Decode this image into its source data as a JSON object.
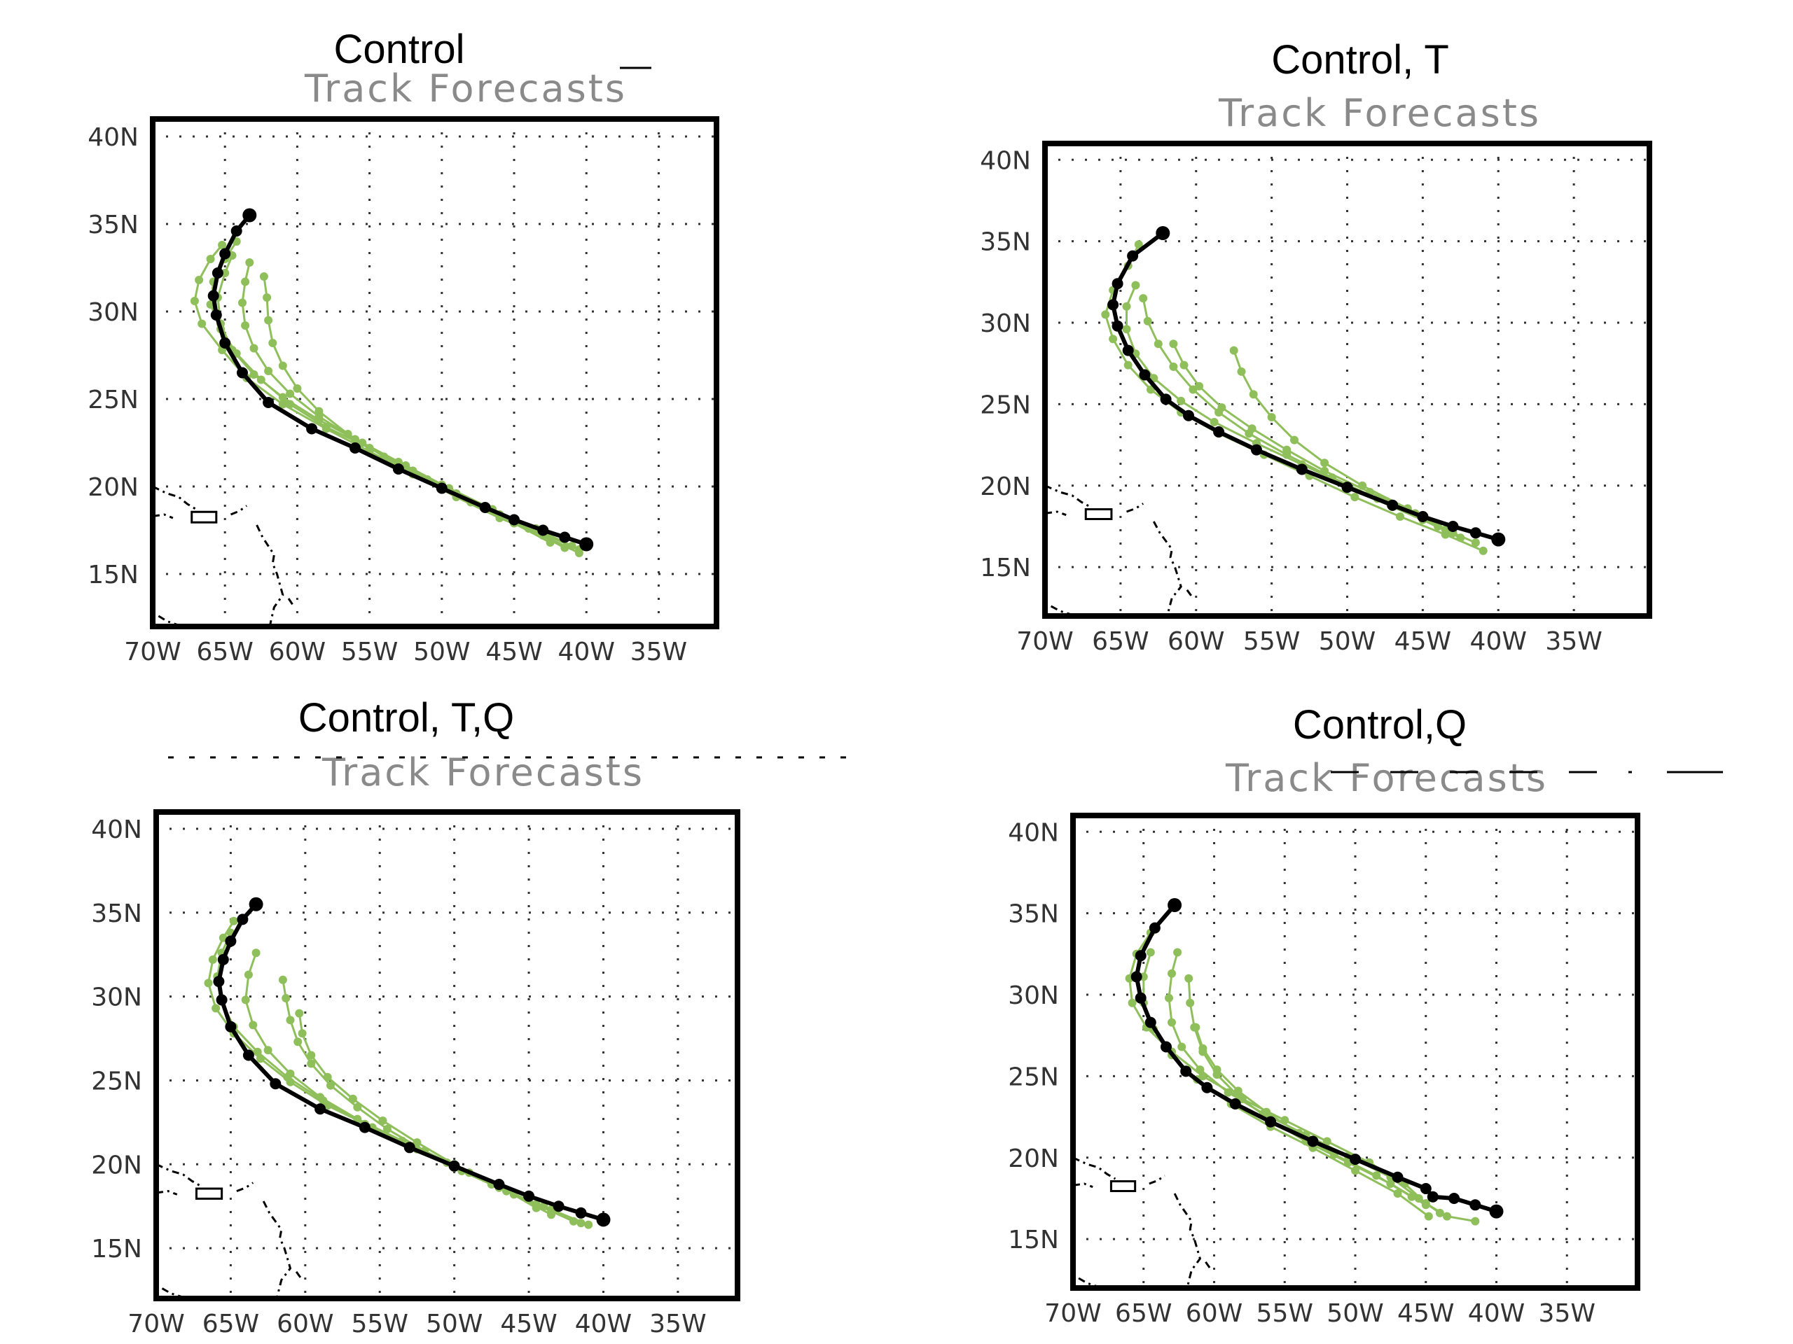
{
  "chart_data": [
    {
      "type": "line",
      "title": "Control",
      "subtitle": "Track Forecasts",
      "x_ticks": [
        "70W",
        "65W",
        "60W",
        "55W",
        "50W",
        "45W",
        "40W",
        "35W"
      ],
      "y_ticks": [
        "40N",
        "35N",
        "30N",
        "25N",
        "20N",
        "15N"
      ],
      "xlim": [
        -70,
        -31
      ],
      "ylim": [
        12,
        41
      ],
      "grid": true,
      "colors": {
        "observed": "#000000",
        "forecast": "#8fbf5a"
      },
      "series": [
        {
          "role": "observed",
          "x": [
            -40.0,
            -41.5,
            -43.0,
            -45.0,
            -47.0,
            -50.0,
            -53.0,
            -56.0,
            -59.0,
            -62.0,
            -63.8,
            -65.0,
            -65.6,
            -65.8,
            -65.5,
            -65.0,
            -64.2,
            -63.3
          ],
          "y": [
            16.7,
            17.1,
            17.5,
            18.1,
            18.8,
            19.9,
            21.0,
            22.2,
            23.3,
            24.8,
            26.5,
            28.2,
            29.8,
            30.9,
            32.2,
            33.3,
            34.6,
            35.5
          ]
        },
        {
          "role": "forecast",
          "x": [
            -40.5,
            -43,
            -46,
            -49,
            -52,
            -55,
            -58,
            -61,
            -63.5,
            -65.2,
            -66.6,
            -67.1,
            -66.8,
            -66.0,
            -65.2
          ],
          "y": [
            16.2,
            17.2,
            18.2,
            19.4,
            20.7,
            22.0,
            23.3,
            24.7,
            26.2,
            27.8,
            29.3,
            30.6,
            31.8,
            33.0,
            33.8
          ]
        },
        {
          "role": "forecast",
          "x": [
            -40.5,
            -43,
            -46,
            -49,
            -52,
            -55,
            -58,
            -60.5,
            -62.5,
            -64.2,
            -65.3,
            -66.0,
            -65.8,
            -65.0,
            -64.2
          ],
          "y": [
            16.4,
            17.3,
            18.4,
            19.6,
            20.9,
            22.2,
            23.4,
            24.7,
            26.1,
            27.6,
            29.0,
            30.4,
            31.7,
            33.0,
            34.0
          ]
        },
        {
          "role": "forecast",
          "x": [
            -41.5,
            -44,
            -47,
            -50,
            -53,
            -56,
            -58.5,
            -60.5,
            -62.0,
            -63.0,
            -63.6,
            -63.8,
            -63.6,
            -63.3
          ],
          "y": [
            16.5,
            17.6,
            18.8,
            20.1,
            21.4,
            22.7,
            24.0,
            25.3,
            26.6,
            27.9,
            29.2,
            30.5,
            31.7,
            32.8
          ]
        },
        {
          "role": "forecast",
          "x": [
            -42.5,
            -45,
            -48,
            -51,
            -54,
            -56.5,
            -58.5,
            -60.0,
            -61.0,
            -61.7,
            -62.0,
            -62.1,
            -62.3
          ],
          "y": [
            16.8,
            17.9,
            19.1,
            20.4,
            21.7,
            23.0,
            24.3,
            25.6,
            26.9,
            28.2,
            29.5,
            30.8,
            32.0
          ]
        },
        {
          "role": "forecast",
          "x": [
            -41.0,
            -43.5,
            -46.5,
            -49.5,
            -52.5,
            -55.5,
            -58.5,
            -61.0,
            -63.0,
            -64.5,
            -65.3,
            -65.5,
            -65.0,
            -64.5
          ],
          "y": [
            16.6,
            17.6,
            18.7,
            19.9,
            21.2,
            22.5,
            23.8,
            25.1,
            26.4,
            27.8,
            29.3,
            30.8,
            32.2,
            33.2
          ]
        }
      ]
    },
    {
      "type": "line",
      "title": "Control, T",
      "subtitle": "Track Forecasts",
      "x_ticks": [
        "70W",
        "65W",
        "60W",
        "55W",
        "50W",
        "45W",
        "40W",
        "35W"
      ],
      "y_ticks": [
        "40N",
        "35N",
        "30N",
        "25N",
        "20N",
        "15N"
      ],
      "xlim": [
        -70,
        -30
      ],
      "ylim": [
        12,
        41
      ],
      "grid": true,
      "colors": {
        "observed": "#000000",
        "forecast": "#8fbf5a"
      },
      "series": [
        {
          "role": "observed",
          "x": [
            -40.0,
            -41.5,
            -43.0,
            -45.0,
            -47.0,
            -50.0,
            -53.0,
            -56.0,
            -58.5,
            -60.5,
            -62.0,
            -63.4,
            -64.5,
            -65.2,
            -65.5,
            -65.2,
            -64.2,
            -62.2
          ],
          "y": [
            16.7,
            17.1,
            17.5,
            18.1,
            18.8,
            19.9,
            21.0,
            22.2,
            23.3,
            24.3,
            25.3,
            26.8,
            28.3,
            29.8,
            31.1,
            32.4,
            34.1,
            35.5
          ]
        },
        {
          "role": "forecast",
          "x": [
            -41,
            -43.5,
            -46.5,
            -49.5,
            -52.5,
            -55.5,
            -58.5,
            -61.0,
            -63.0,
            -64.5,
            -65.5,
            -66.0,
            -65.5,
            -64.5,
            -63.8
          ],
          "y": [
            16.0,
            17.0,
            18.1,
            19.3,
            20.6,
            21.9,
            23.2,
            24.5,
            25.9,
            27.4,
            29.0,
            30.5,
            32.0,
            33.5,
            34.8
          ]
        },
        {
          "role": "forecast",
          "x": [
            -42.5,
            -45,
            -48,
            -51,
            -54,
            -56.5,
            -58.5,
            -60.2,
            -61.5,
            -62.5,
            -63.2,
            -63.5
          ],
          "y": [
            16.8,
            17.9,
            19.2,
            20.5,
            21.9,
            23.2,
            24.5,
            25.9,
            27.3,
            28.7,
            30.1,
            31.5
          ]
        },
        {
          "role": "forecast",
          "x": [
            -43.5,
            -46,
            -49,
            -51.5,
            -53.5,
            -55.0,
            -56.2,
            -57.0,
            -57.5
          ],
          "y": [
            17.3,
            18.6,
            20.0,
            21.4,
            22.8,
            24.2,
            25.6,
            27.0,
            28.3
          ]
        },
        {
          "role": "forecast",
          "x": [
            -43.0,
            -45.5,
            -48.5,
            -51.5,
            -54.0,
            -56.3,
            -58.3,
            -59.8,
            -60.8,
            -61.5
          ],
          "y": [
            17.1,
            18.3,
            19.6,
            20.9,
            22.2,
            23.5,
            24.8,
            26.1,
            27.4,
            28.7
          ]
        },
        {
          "role": "forecast",
          "x": [
            -41.5,
            -44,
            -47,
            -50,
            -53,
            -56,
            -58.8,
            -61.0,
            -62.8,
            -64.0,
            -64.6,
            -64.6,
            -64.0
          ],
          "y": [
            16.5,
            17.5,
            18.7,
            20.0,
            21.3,
            22.6,
            23.9,
            25.2,
            26.6,
            28.1,
            29.6,
            31.0,
            32.3
          ]
        }
      ]
    },
    {
      "type": "line",
      "title": "Control, T,Q",
      "subtitle": "Track Forecasts",
      "x_ticks": [
        "70W",
        "65W",
        "60W",
        "55W",
        "50W",
        "45W",
        "40W",
        "35W"
      ],
      "y_ticks": [
        "40N",
        "35N",
        "30N",
        "25N",
        "20N",
        "15N"
      ],
      "xlim": [
        -70,
        -31
      ],
      "ylim": [
        12,
        41
      ],
      "grid": true,
      "colors": {
        "observed": "#000000",
        "forecast": "#8fbf5a"
      },
      "series": [
        {
          "role": "observed",
          "x": [
            -40.0,
            -41.5,
            -43.0,
            -45.0,
            -47.0,
            -50.0,
            -53.0,
            -56.0,
            -59.0,
            -62.0,
            -63.8,
            -65.0,
            -65.6,
            -65.8,
            -65.5,
            -65.0,
            -64.2,
            -63.3
          ],
          "y": [
            16.7,
            17.1,
            17.5,
            18.1,
            18.8,
            19.9,
            21.0,
            22.2,
            23.3,
            24.8,
            26.5,
            28.2,
            29.8,
            30.9,
            32.2,
            33.3,
            34.6,
            35.5
          ]
        },
        {
          "role": "forecast",
          "x": [
            -41.0,
            -43.5,
            -46.5,
            -49.5,
            -52.5,
            -55.5,
            -58.5,
            -61.0,
            -63.0,
            -64.8,
            -66.0,
            -66.5,
            -66.2,
            -65.5,
            -64.8
          ],
          "y": [
            16.4,
            17.3,
            18.4,
            19.6,
            20.9,
            22.2,
            23.5,
            24.9,
            26.3,
            27.8,
            29.3,
            30.8,
            32.2,
            33.5,
            34.5
          ]
        },
        {
          "role": "forecast",
          "x": [
            -42.0,
            -44.5,
            -47.5,
            -50.5,
            -53.5,
            -56.5,
            -59.0,
            -61.0,
            -62.5,
            -63.5,
            -64.0,
            -63.8,
            -63.3
          ],
          "y": [
            16.6,
            17.6,
            18.8,
            20.1,
            21.4,
            22.7,
            24.0,
            25.4,
            26.8,
            28.3,
            29.8,
            31.3,
            32.6
          ]
        },
        {
          "role": "forecast",
          "x": [
            -43.5,
            -46,
            -49,
            -52,
            -54.5,
            -56.5,
            -58.3,
            -59.6,
            -60.5,
            -61.0,
            -61.3,
            -61.5
          ],
          "y": [
            17.0,
            18.2,
            19.5,
            20.8,
            22.1,
            23.4,
            24.7,
            26.0,
            27.3,
            28.6,
            29.9,
            31.0
          ]
        },
        {
          "role": "forecast",
          "x": [
            -44.5,
            -47,
            -50,
            -52.5,
            -54.8,
            -56.8,
            -58.5,
            -59.6,
            -60.2,
            -60.4
          ],
          "y": [
            17.4,
            18.7,
            20.0,
            21.3,
            22.6,
            23.9,
            25.2,
            26.5,
            27.8,
            29.0
          ]
        },
        {
          "role": "forecast",
          "x": [
            -41.5,
            -44,
            -47,
            -50,
            -53,
            -56,
            -58.8,
            -61.2,
            -63.2,
            -64.8,
            -65.6,
            -65.9,
            -65.6,
            -65.0
          ],
          "y": [
            16.5,
            17.5,
            18.6,
            19.8,
            21.1,
            22.4,
            23.8,
            25.2,
            26.7,
            28.2,
            29.7,
            31.2,
            32.6,
            33.8
          ]
        }
      ]
    },
    {
      "type": "line",
      "title": "Control,Q",
      "subtitle": "Track Forecasts",
      "x_ticks": [
        "70W",
        "65W",
        "60W",
        "55W",
        "50W",
        "45W",
        "40W",
        "35W"
      ],
      "y_ticks": [
        "40N",
        "35N",
        "30N",
        "25N",
        "20N",
        "15N"
      ],
      "xlim": [
        -70,
        -30
      ],
      "ylim": [
        12,
        41
      ],
      "grid": true,
      "colors": {
        "observed": "#000000",
        "forecast": "#8fbf5a"
      },
      "series": [
        {
          "role": "observed",
          "x": [
            -40.0,
            -41.5,
            -43.0,
            -44.5,
            -45.0,
            -47.0,
            -50.0,
            -53.0,
            -56.0,
            -58.5,
            -60.5,
            -62.0,
            -63.4,
            -64.5,
            -65.2,
            -65.5,
            -65.2,
            -64.2,
            -62.8
          ],
          "y": [
            16.7,
            17.1,
            17.5,
            17.6,
            18.1,
            18.8,
            19.9,
            21.0,
            22.2,
            23.3,
            24.3,
            25.3,
            26.8,
            28.3,
            29.8,
            31.1,
            32.4,
            34.1,
            35.5
          ]
        },
        {
          "role": "forecast",
          "x": [
            -41.5,
            -43.5,
            -45.0,
            -46.5,
            -49.0,
            -52.0,
            -55.0,
            -58.0,
            -60.8,
            -63.0,
            -64.8,
            -65.8,
            -66.0,
            -65.5,
            -64.5
          ],
          "y": [
            16.1,
            16.4,
            17.2,
            18.4,
            19.7,
            21.0,
            22.3,
            23.6,
            25.0,
            26.5,
            28.0,
            29.5,
            31.0,
            32.5,
            33.8
          ]
        },
        {
          "role": "forecast",
          "x": [
            -44.0,
            -45.5,
            -47.5,
            -50.5,
            -53.5,
            -56.5,
            -59.0,
            -61.0,
            -62.3,
            -63.0,
            -63.2,
            -63.0,
            -62.6
          ],
          "y": [
            16.6,
            17.5,
            18.8,
            20.1,
            21.4,
            22.7,
            24.0,
            25.4,
            26.8,
            28.3,
            29.8,
            31.3,
            32.6
          ]
        },
        {
          "role": "forecast",
          "x": [
            -45.0,
            -47.5,
            -50.5,
            -53.5,
            -56.0,
            -58.2,
            -59.8,
            -60.8,
            -61.4,
            -61.7,
            -61.8
          ],
          "y": [
            17.1,
            18.4,
            19.7,
            21.0,
            22.3,
            23.7,
            25.1,
            26.5,
            28.0,
            29.5,
            31.0
          ]
        },
        {
          "role": "forecast",
          "x": [
            -46.0,
            -48.5,
            -51.5,
            -54.0,
            -56.3,
            -58.3,
            -59.8,
            -60.8,
            -61.3
          ],
          "y": [
            17.6,
            18.9,
            20.2,
            21.5,
            22.8,
            24.1,
            25.4,
            26.7,
            28.0
          ]
        },
        {
          "role": "forecast",
          "x": [
            -44.8,
            -47.0,
            -50.0,
            -53.0,
            -56.0,
            -58.8,
            -61.2,
            -63.0,
            -64.3,
            -65.0,
            -65.0,
            -64.5
          ],
          "y": [
            16.4,
            17.8,
            19.2,
            20.6,
            21.9,
            23.3,
            24.8,
            26.3,
            27.9,
            29.5,
            31.1,
            32.6
          ]
        }
      ]
    }
  ]
}
